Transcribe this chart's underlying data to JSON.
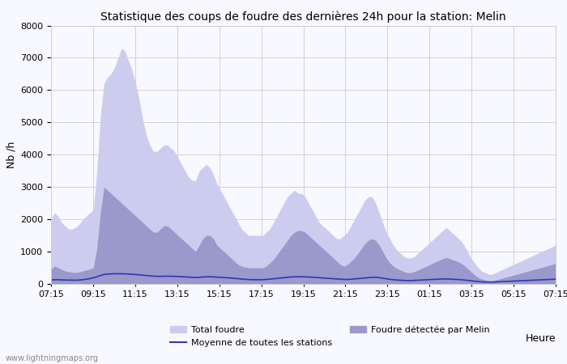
{
  "title": "Statistique des coups de foudre des dernières 24h pour la station: Melin",
  "xlabel": "Heure",
  "ylabel": "Nb /h",
  "ylim": [
    0,
    8000
  ],
  "yticks": [
    0,
    1000,
    2000,
    3000,
    4000,
    5000,
    6000,
    7000,
    8000
  ],
  "xtick_labels": [
    "07:15",
    "09:15",
    "11:15",
    "13:15",
    "15:15",
    "17:15",
    "19:15",
    "21:15",
    "23:15",
    "01:15",
    "03:15",
    "05:15",
    "07:15"
  ],
  "watermark": "www.lightningmaps.org",
  "color_total": "#ccccee",
  "color_melin": "#9999cc",
  "color_mean": "#3333bb",
  "background_color": "#f8f8ff",
  "total_foudre": [
    2000,
    2200,
    2100,
    1900,
    1800,
    1700,
    1700,
    1750,
    1850,
    2000,
    2100,
    2200,
    2300,
    3500,
    5200,
    6200,
    6400,
    6500,
    6700,
    7000,
    7300,
    7200,
    6900,
    6600,
    6200,
    5700,
    5100,
    4600,
    4300,
    4100,
    4100,
    4200,
    4300,
    4300,
    4200,
    4100,
    3900,
    3700,
    3500,
    3300,
    3200,
    3200,
    3500,
    3600,
    3700,
    3600,
    3400,
    3100,
    2900,
    2700,
    2500,
    2300,
    2100,
    1900,
    1700,
    1600,
    1500,
    1500,
    1500,
    1500,
    1500,
    1600,
    1700,
    1900,
    2100,
    2300,
    2500,
    2700,
    2800,
    2900,
    2800,
    2800,
    2700,
    2500,
    2300,
    2100,
    1900,
    1800,
    1700,
    1600,
    1500,
    1400,
    1400,
    1500,
    1600,
    1800,
    2000,
    2200,
    2400,
    2600,
    2700,
    2700,
    2500,
    2200,
    1900,
    1600,
    1400,
    1200,
    1050,
    950,
    850,
    800,
    800,
    850,
    950,
    1050,
    1150,
    1250,
    1350,
    1450,
    1550,
    1650,
    1750,
    1650,
    1550,
    1450,
    1350,
    1200,
    1000,
    800,
    650,
    500,
    400,
    350,
    300,
    300,
    350,
    400,
    450,
    500,
    550,
    600,
    650,
    700,
    750,
    800,
    850,
    900,
    950,
    1000,
    1050,
    1100,
    1150,
    1200
  ],
  "melin_foudre": [
    450,
    550,
    500,
    450,
    400,
    380,
    360,
    350,
    370,
    400,
    430,
    460,
    500,
    1100,
    2200,
    3000,
    2900,
    2800,
    2700,
    2600,
    2500,
    2400,
    2300,
    2200,
    2100,
    2000,
    1900,
    1800,
    1700,
    1600,
    1600,
    1700,
    1800,
    1800,
    1700,
    1600,
    1500,
    1400,
    1300,
    1200,
    1100,
    1000,
    1200,
    1400,
    1500,
    1500,
    1400,
    1200,
    1100,
    1000,
    900,
    800,
    700,
    600,
    550,
    520,
    500,
    500,
    500,
    500,
    500,
    550,
    650,
    750,
    900,
    1050,
    1200,
    1350,
    1500,
    1600,
    1650,
    1650,
    1600,
    1500,
    1400,
    1300,
    1200,
    1100,
    1000,
    900,
    800,
    700,
    600,
    550,
    600,
    700,
    800,
    950,
    1100,
    1250,
    1350,
    1400,
    1350,
    1200,
    1000,
    800,
    650,
    550,
    480,
    430,
    380,
    350,
    350,
    380,
    430,
    480,
    530,
    580,
    630,
    680,
    730,
    780,
    820,
    780,
    740,
    700,
    650,
    580,
    480,
    380,
    280,
    200,
    150,
    120,
    100,
    100,
    120,
    150,
    180,
    210,
    240,
    270,
    300,
    330,
    360,
    390,
    420,
    450,
    480,
    510,
    540,
    570,
    600,
    630
  ],
  "mean_line": [
    120,
    130,
    130,
    125,
    120,
    118,
    115,
    115,
    120,
    130,
    145,
    165,
    190,
    220,
    260,
    290,
    305,
    310,
    315,
    315,
    315,
    310,
    305,
    300,
    290,
    280,
    270,
    260,
    250,
    240,
    235,
    235,
    238,
    240,
    238,
    235,
    230,
    225,
    218,
    210,
    205,
    200,
    205,
    215,
    220,
    222,
    218,
    210,
    205,
    198,
    190,
    182,
    172,
    162,
    152,
    143,
    135,
    132,
    130,
    130,
    132,
    138,
    148,
    158,
    170,
    182,
    195,
    205,
    215,
    220,
    222,
    222,
    220,
    215,
    208,
    200,
    192,
    185,
    178,
    170,
    162,
    155,
    148,
    138,
    138,
    145,
    155,
    165,
    175,
    185,
    195,
    205,
    205,
    195,
    178,
    160,
    142,
    130,
    120,
    113,
    108,
    103,
    103,
    108,
    113,
    120,
    127,
    133,
    138,
    143,
    148,
    152,
    155,
    150,
    145,
    140,
    133,
    122,
    110,
    97,
    85,
    73,
    65,
    60,
    57,
    57,
    62,
    68,
    73,
    78,
    83,
    88,
    93,
    98,
    103,
    108,
    112,
    117,
    122,
    127,
    132,
    137,
    142,
    147
  ]
}
